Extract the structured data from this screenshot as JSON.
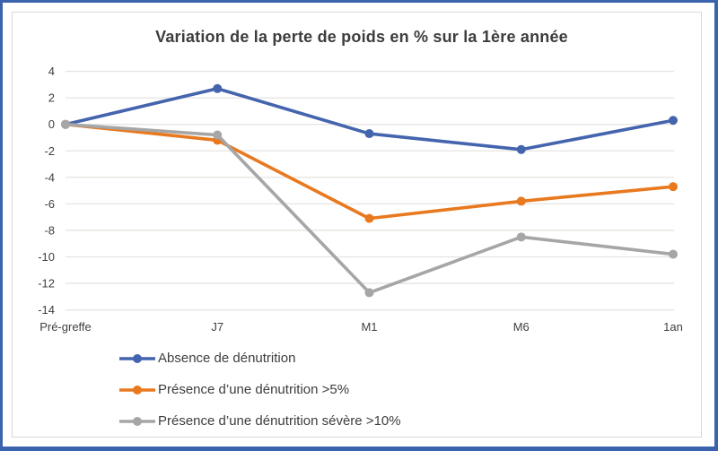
{
  "window": {
    "outer_border_color": "#3a62ad",
    "frame_border_color": "#d9d9d9",
    "background_color": "#ffffff"
  },
  "chart_data": {
    "type": "line",
    "title": "Variation de la perte de poids en % sur la 1ère année",
    "title_color": "#3d3d3d",
    "categories": [
      "Pré-greffe",
      "J7",
      "M1",
      "M6",
      "1an"
    ],
    "series": [
      {
        "name": "Absence de dénutrition",
        "color": "#4464ae",
        "values": [
          0,
          2.7,
          -0.7,
          -1.9,
          0.3
        ]
      },
      {
        "name": "Présence d’une dénutrition >5%",
        "color": "#e8791f",
        "values": [
          0,
          -1.2,
          -7.1,
          -5.8,
          -4.7
        ]
      },
      {
        "name": "Présence d’une dénutrition sévère >10%",
        "color": "#a6a6a6",
        "values": [
          0,
          -0.8,
          -12.7,
          -8.5,
          -9.8
        ]
      }
    ],
    "xlabel": "",
    "ylabel": "",
    "ylim": [
      -14,
      4
    ],
    "yticks": [
      4,
      2,
      0,
      -2,
      -4,
      -6,
      -8,
      -10,
      -12,
      -14
    ],
    "grid": true,
    "gridline_color": "#e7e4e1",
    "axis_label_color": "#404040",
    "legend_position": "bottom-left",
    "marker": "circle"
  }
}
